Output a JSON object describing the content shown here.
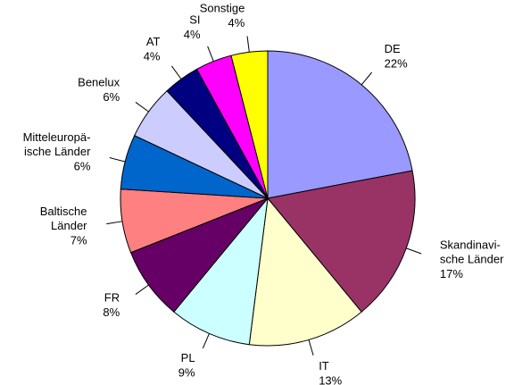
{
  "chart_data": {
    "type": "pie",
    "categories": [
      "DE",
      "Skandinavi-\nsche Länder",
      "IT",
      "PL",
      "FR",
      "Baltische\nLänder",
      "Mitteleuropä-\nische Länder",
      "Benelux",
      "AT",
      "SI",
      "Sonstige"
    ],
    "values": [
      22,
      17,
      13,
      9,
      8,
      7,
      6,
      6,
      4,
      4,
      4
    ],
    "value_labels": [
      "22%",
      "17%",
      "13%",
      "9%",
      "8%",
      "7%",
      "6%",
      "6%",
      "4%",
      "4%",
      "4%"
    ],
    "colors": [
      "#9999ff",
      "#993366",
      "#ffffcc",
      "#ccffff",
      "#660066",
      "#ff8080",
      "#0066cc",
      "#ccccff",
      "#000080",
      "#ff00ff",
      "#ffff00"
    ]
  }
}
